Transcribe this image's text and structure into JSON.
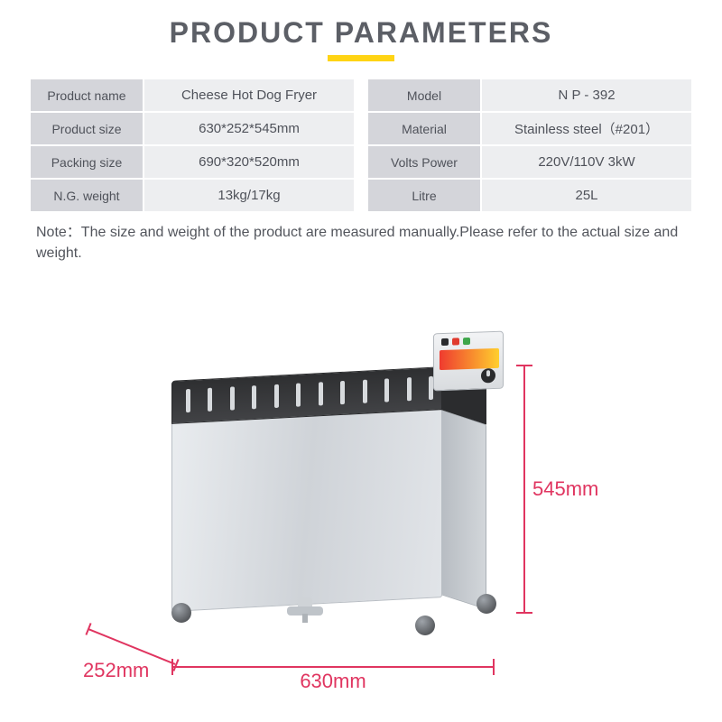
{
  "title": "PRODUCT PARAMETERS",
  "title_color": "#5c5f66",
  "title_fontsize": 32,
  "underline_color": "#ffd414",
  "table_label_bg": "#d4d5da",
  "table_value_bg": "#edeef0",
  "table_text_color": "#4f525a",
  "left_rows": [
    {
      "label": "Product name",
      "value": "Cheese Hot Dog Fryer"
    },
    {
      "label": "Product size",
      "value": "630*252*545mm"
    },
    {
      "label": "Packing size",
      "value": "690*320*520mm"
    },
    {
      "label": "N.G. weight",
      "value": "13kg/17kg"
    }
  ],
  "right_rows": [
    {
      "label": "Model",
      "value": "N P - 392"
    },
    {
      "label": "Material",
      "value": "Stainless steel（#201）"
    },
    {
      "label": "Volts  Power",
      "value": "220V/110V    3kW"
    },
    {
      "label": "Litre",
      "value": "25L"
    }
  ],
  "note": "Note：The size and weight of the product are measured manually.Please refer to the actual size and weight.",
  "dimensions": {
    "width_label": "630mm",
    "depth_label": "252mm",
    "height_label": "545mm",
    "line_color": "#e03560",
    "text_fontsize": 22
  },
  "illustration": {
    "body_metal_gradient": [
      "#e9ecef",
      "#cfd3d8",
      "#e1e4e8"
    ],
    "top_dark": "#2e2f31",
    "panel_strip_gradient": [
      "#ef3b2f",
      "#ffcf2e"
    ],
    "knob_color": "#2a2b2d",
    "bar_count": 12
  }
}
